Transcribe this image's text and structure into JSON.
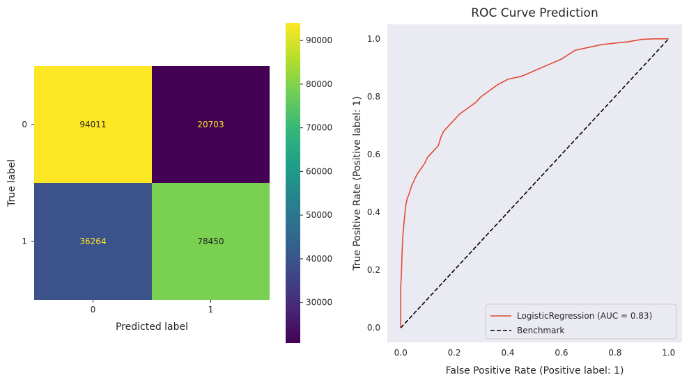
{
  "chart_data": [
    {
      "type": "heatmap",
      "row_labels": [
        "0",
        "1"
      ],
      "col_labels": [
        "0",
        "1"
      ],
      "values": [
        [
          94011,
          20703
        ],
        [
          36264,
          78450
        ]
      ],
      "xlabel": "Predicted label",
      "ylabel": "True label",
      "colormap": "viridis",
      "colorbar": {
        "min": 20703,
        "max": 94011,
        "ticks": [
          30000,
          40000,
          50000,
          60000,
          70000,
          80000,
          90000
        ],
        "tick_labels": [
          "30000",
          "40000",
          "50000",
          "60000",
          "70000",
          "80000",
          "90000"
        ]
      },
      "cell_colors": [
        [
          "#fde725",
          "#440154"
        ],
        [
          "#3b528b",
          "#7ad151"
        ]
      ],
      "text_colors": [
        [
          "#222222",
          "#fde725"
        ],
        [
          "#fde725",
          "#222222"
        ]
      ]
    },
    {
      "type": "line",
      "title": "ROC Curve Prediction",
      "xlabel": "False Positive Rate (Positive label: 1)",
      "ylabel": "True Positive Rate (Positive label: 1)",
      "xlim": [
        -0.05,
        1.05
      ],
      "ylim": [
        -0.05,
        1.05
      ],
      "x_ticks": [
        0.0,
        0.2,
        0.4,
        0.6,
        0.8,
        1.0
      ],
      "x_tick_labels": [
        "0.0",
        "0.2",
        "0.4",
        "0.6",
        "0.8",
        "1.0"
      ],
      "y_ticks": [
        0.0,
        0.2,
        0.4,
        0.6,
        0.8,
        1.0
      ],
      "y_tick_labels": [
        "0.0",
        "0.2",
        "0.4",
        "0.6",
        "0.8",
        "1.0"
      ],
      "background": "#eaeaf2",
      "legend_position": "lower-right",
      "series": [
        {
          "name": "LogisticRegression (AUC = 0.83)",
          "color": "#e24a33",
          "style": "solid",
          "x": [
            0.0,
            0.0,
            0.003,
            0.005,
            0.008,
            0.012,
            0.016,
            0.02,
            0.025,
            0.03,
            0.04,
            0.05,
            0.06,
            0.075,
            0.09,
            0.1,
            0.12,
            0.14,
            0.15,
            0.16,
            0.18,
            0.2,
            0.22,
            0.25,
            0.28,
            0.3,
            0.33,
            0.36,
            0.4,
            0.45,
            0.5,
            0.55,
            0.6,
            0.65,
            0.7,
            0.75,
            0.8,
            0.85,
            0.9,
            0.95,
            1.0
          ],
          "y": [
            0.0,
            0.14,
            0.2,
            0.26,
            0.32,
            0.36,
            0.4,
            0.43,
            0.45,
            0.46,
            0.49,
            0.51,
            0.53,
            0.55,
            0.57,
            0.59,
            0.61,
            0.63,
            0.66,
            0.68,
            0.7,
            0.72,
            0.74,
            0.76,
            0.78,
            0.8,
            0.82,
            0.84,
            0.86,
            0.87,
            0.89,
            0.91,
            0.93,
            0.96,
            0.97,
            0.98,
            0.985,
            0.99,
            0.998,
            1.0,
            1.0
          ]
        },
        {
          "name": "Benchmark",
          "color": "#000000",
          "style": "dashed",
          "x": [
            0.0,
            1.0
          ],
          "y": [
            0.0,
            1.0
          ]
        }
      ]
    }
  ]
}
